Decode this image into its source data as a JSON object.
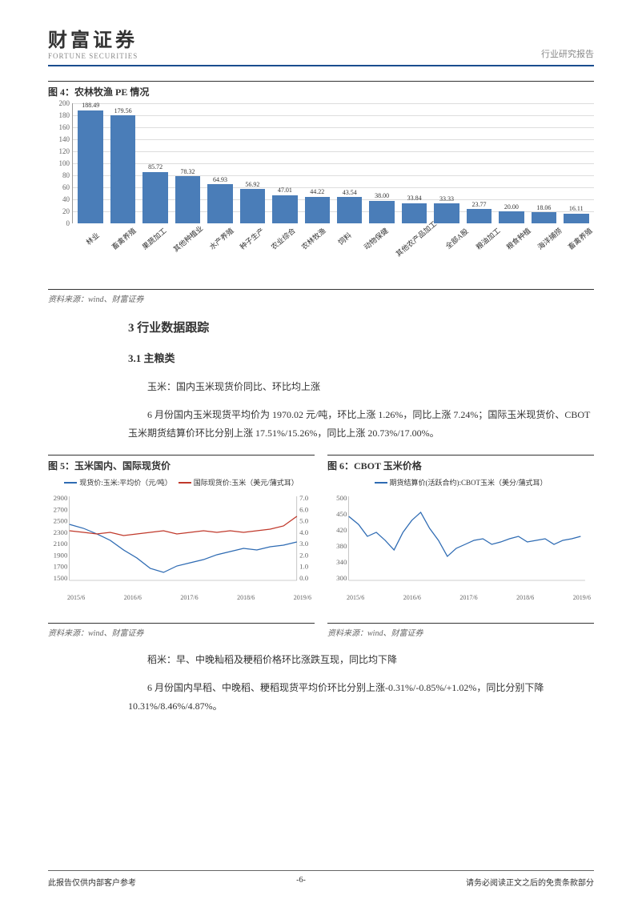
{
  "header": {
    "logo_cn": "财富证券",
    "logo_en": "FORTUNE SECURITIES",
    "report_type": "行业研究报告"
  },
  "fig4": {
    "title": "图 4：农林牧渔 PE 情况",
    "type": "bar",
    "ylim": [
      0,
      200
    ],
    "ytick_step": 20,
    "bar_color": "#4a7db8",
    "grid_color": "#dddddd",
    "categories": [
      "林业",
      "畜禽养殖",
      "果蔬加工",
      "其他种植业",
      "水产养殖",
      "种子生产",
      "农业综合",
      "农林牧渔",
      "饲料",
      "动物保健",
      "其他农产品加工",
      "全部A股",
      "粮油加工",
      "粮食种植",
      "海洋捕捞",
      "畜禽养殖"
    ],
    "values": [
      188.49,
      179.56,
      85.72,
      78.32,
      64.93,
      56.92,
      47.01,
      44.22,
      43.54,
      38.0,
      33.84,
      33.33,
      23.77,
      20.0,
      18.06,
      16.11
    ],
    "source": "资料来源：wind、财富证券"
  },
  "section3": {
    "title": "3 行业数据跟踪",
    "sub1_title": "3.1 主粮类",
    "p1": "玉米：国内玉米现货价同比、环比均上涨",
    "p2": "6 月份国内玉米现货平均价为 1970.02 元/吨，环比上涨 1.26%，同比上涨 7.24%；国际玉米现货价、CBOT 玉米期货结算价环比分别上涨 17.51%/15.26%，同比上涨 20.73%/17.00%。"
  },
  "fig5": {
    "title": "图 5：玉米国内、国际现货价",
    "legend1": "现货价:玉米:平均价（元/吨）",
    "legend2": "国际现货价:玉米（美元/蒲式耳）",
    "color1": "#2e6bb3",
    "color2": "#c0392b",
    "y1_ticks": [
      "2900",
      "2700",
      "2500",
      "2300",
      "2100",
      "1900",
      "1700",
      "1500"
    ],
    "y2_ticks": [
      "7.0",
      "6.0",
      "5.0",
      "4.0",
      "3.0",
      "2.0",
      "1.0",
      "0.0"
    ],
    "x_labels": [
      "2015/6",
      "2016/6",
      "2017/6",
      "2018/6",
      "2019/6"
    ],
    "source": "资料来源：wind、财富证券"
  },
  "fig6": {
    "title": "图 6：CBOT 玉米价格",
    "legend1": "期货结算价(活跃合约):CBOT玉米（美分/蒲式耳）",
    "color1": "#2e6bb3",
    "y_ticks": [
      "500",
      "450",
      "420",
      "380",
      "340",
      "300"
    ],
    "x_labels": [
      "2015/6",
      "2016/6",
      "2017/6",
      "2018/6",
      "2019/6"
    ],
    "source": "资料来源：wind、财富证券"
  },
  "body2": {
    "p1": "稻米：早、中晚籼稻及粳稻价格环比涨跌互现，同比均下降",
    "p2": "6 月份国内早稻、中晚稻、粳稻现货平均价环比分别上涨-0.31%/-0.85%/+1.02%，同比分别下降 10.31%/8.46%/4.87%。"
  },
  "footer": {
    "left": "此报告仅供内部客户参考",
    "page": "-6-",
    "right": "请务必阅读正文之后的免责条款部分"
  }
}
